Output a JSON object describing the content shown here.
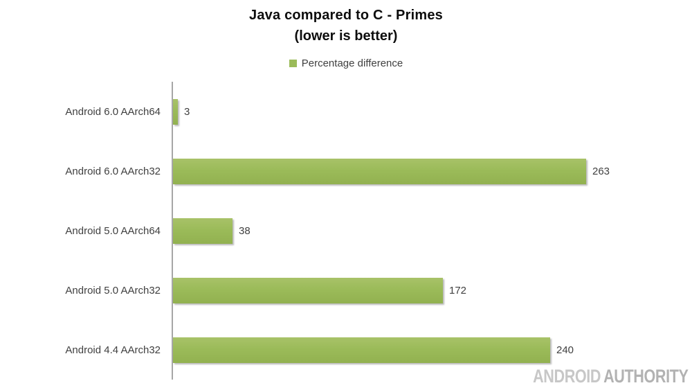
{
  "chart_data": {
    "type": "bar",
    "orientation": "horizontal",
    "title": "Java compared to C - Primes",
    "subtitle": "(lower is better)",
    "legend": [
      "Percentage difference"
    ],
    "legend_position": "top",
    "categories": [
      "Android 6.0 AArch64",
      "Android 6.0 AArch32",
      "Android 5.0 AArch64",
      "Android 5.0 AArch32",
      "Android 4.4 AArch32"
    ],
    "values": [
      3,
      263,
      38,
      172,
      240
    ],
    "value_labels_shown": true,
    "grid": false,
    "x_axis_ticks_visible": false,
    "bar_color": "#9BBB59",
    "axis_line_color": "#A6A6A6",
    "text_color": "#3F3F3F"
  },
  "watermark": {
    "part1": "ANDROID",
    "part2": "AUTHORITY"
  }
}
